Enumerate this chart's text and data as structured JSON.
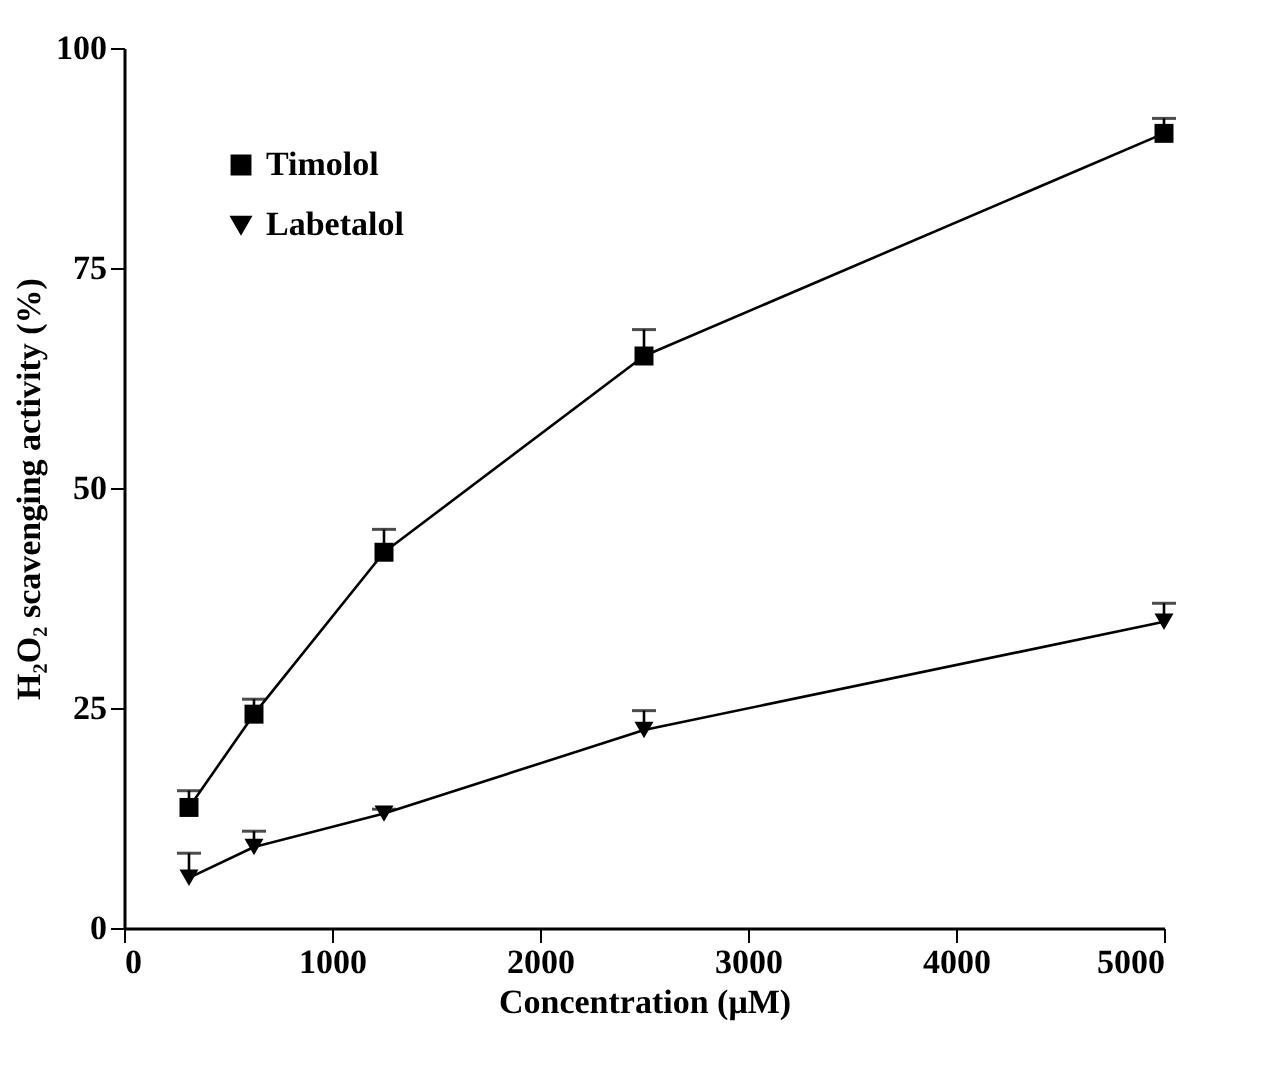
{
  "chart_data": {
    "type": "line",
    "xlabel": "Concentration (μM)",
    "ylabel": "H₂O₂ scavenging activity (%)",
    "x": [
      312.5,
      625,
      1250,
      2500,
      5000
    ],
    "series": [
      {
        "name": "Timolol",
        "color": "#000000",
        "marker": "square",
        "values": [
          13.7,
          24.3,
          42.7,
          65,
          90.3
        ],
        "errors": [
          [
            13.7,
            15.6
          ],
          [
            24.3,
            26
          ],
          [
            42.7,
            45.3
          ],
          [
            65,
            68
          ],
          [
            90.3,
            92
          ]
        ]
      },
      {
        "name": "Labetalol",
        "color": "#000000",
        "marker": "triangle",
        "values": [
          5.7,
          9.2,
          13,
          22.5,
          34.8
        ],
        "errors": [
          [
            5.7,
            8.5
          ],
          [
            9.2,
            11
          ],
          [
            13,
            13.5
          ],
          [
            22.5,
            24.7
          ],
          [
            34.8,
            36.9
          ]
        ]
      }
    ],
    "xlim": [
      0,
      5000
    ],
    "xticks": [
      0,
      1000,
      2000,
      3000,
      4000,
      5000
    ],
    "ylim": [
      0,
      100
    ],
    "yticks": [
      0,
      25,
      50,
      75,
      100
    ],
    "grid": false,
    "legend": "top left",
    "line_style": "solid"
  }
}
